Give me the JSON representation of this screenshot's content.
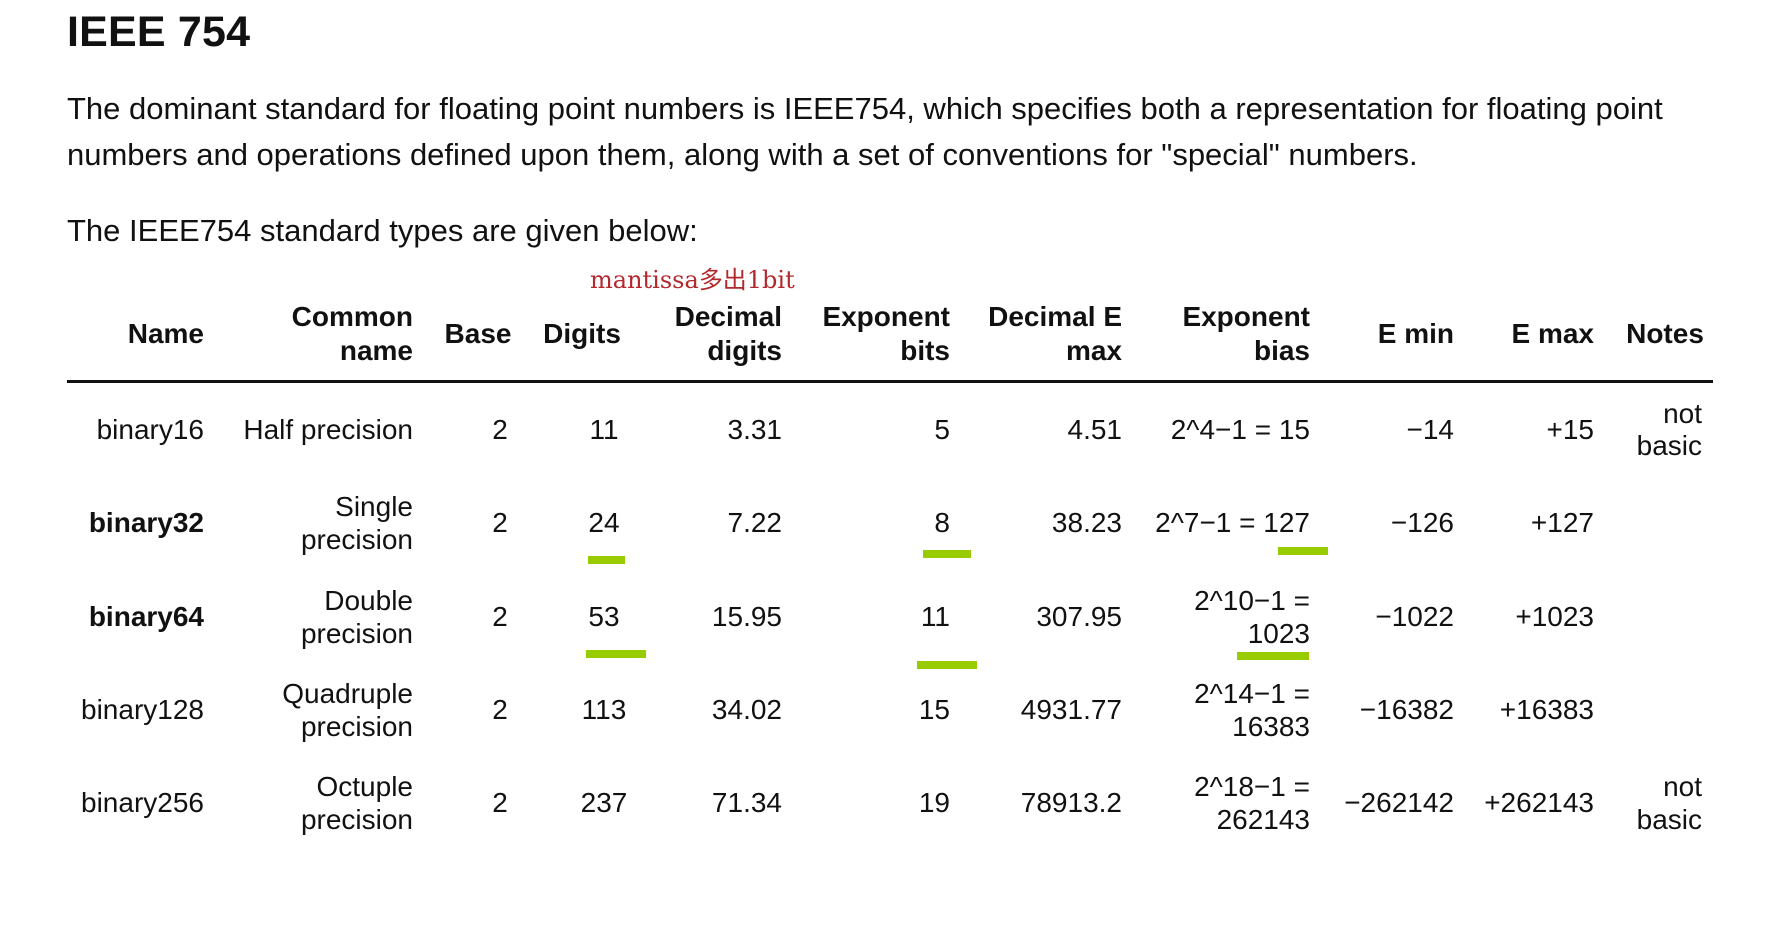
{
  "heading": "IEEE 754",
  "intro": "The dominant standard for floating point numbers is IEEE754, which specifies both a representation for floating point numbers and operations defined upon them, along with a set of conventions for \"special\" numbers.",
  "subheading": "The IEEE754 standard types are given below:",
  "annotation": "mantissa多出1bit",
  "highlight_color": "#99cc00",
  "annotation_color": "#b3282d",
  "table": {
    "headers": {
      "name": "Name",
      "common_1": "Common",
      "common_2": "name",
      "base": "Base",
      "digits": "Digits",
      "decdigits_1": "Decimal",
      "decdigits_2": "digits",
      "expbits_1": "Exponent",
      "expbits_2": "bits",
      "decemax_1": "Decimal E",
      "decemax_2": "max",
      "expbias_1": "Exponent",
      "expbias_2": "bias",
      "emin": "E min",
      "emax": "E max",
      "notes": "Notes"
    },
    "rows": [
      {
        "name": "binary16",
        "common_1": "Half precision",
        "common_2": "",
        "base": "2",
        "digits": "11",
        "decdigits": "3.31",
        "expbits": "5",
        "decemax": "4.51",
        "expbias_1": "2^4−1 = 15",
        "expbias_2": "",
        "emin": "−14",
        "emax": "+15",
        "notes_1": "not",
        "notes_2": "basic"
      },
      {
        "name": "binary32",
        "common_1": "Single",
        "common_2": "precision",
        "base": "2",
        "digits": "24",
        "decdigits": "7.22",
        "expbits": "8",
        "decemax": "38.23",
        "expbias_1": "2^7−1 = 127",
        "expbias_2": "",
        "emin": "−126",
        "emax": "+127",
        "notes_1": "",
        "notes_2": ""
      },
      {
        "name": "binary64",
        "common_1": "Double",
        "common_2": "precision",
        "base": "2",
        "digits": "53",
        "decdigits": "15.95",
        "expbits": "11",
        "decemax": "307.95",
        "expbias_1": "2^10−1 =",
        "expbias_2": "1023",
        "emin": "−1022",
        "emax": "+1023",
        "notes_1": "",
        "notes_2": ""
      },
      {
        "name": "binary128",
        "common_1": "Quadruple",
        "common_2": "precision",
        "base": "2",
        "digits": "113",
        "decdigits": "34.02",
        "expbits": "15",
        "decemax": "4931.77",
        "expbias_1": "2^14−1 =",
        "expbias_2": "16383",
        "emin": "−16382",
        "emax": "+16383",
        "notes_1": "",
        "notes_2": ""
      },
      {
        "name": "binary256",
        "common_1": "Octuple",
        "common_2": "precision",
        "base": "2",
        "digits": "237",
        "decdigits": "71.34",
        "expbits": "19",
        "decemax": "78913.2",
        "expbias_1": "2^18−1 =",
        "expbias_2": "262143",
        "emin": "−262142",
        "emax": "+262143",
        "notes_1": "not",
        "notes_2": "basic"
      }
    ]
  }
}
